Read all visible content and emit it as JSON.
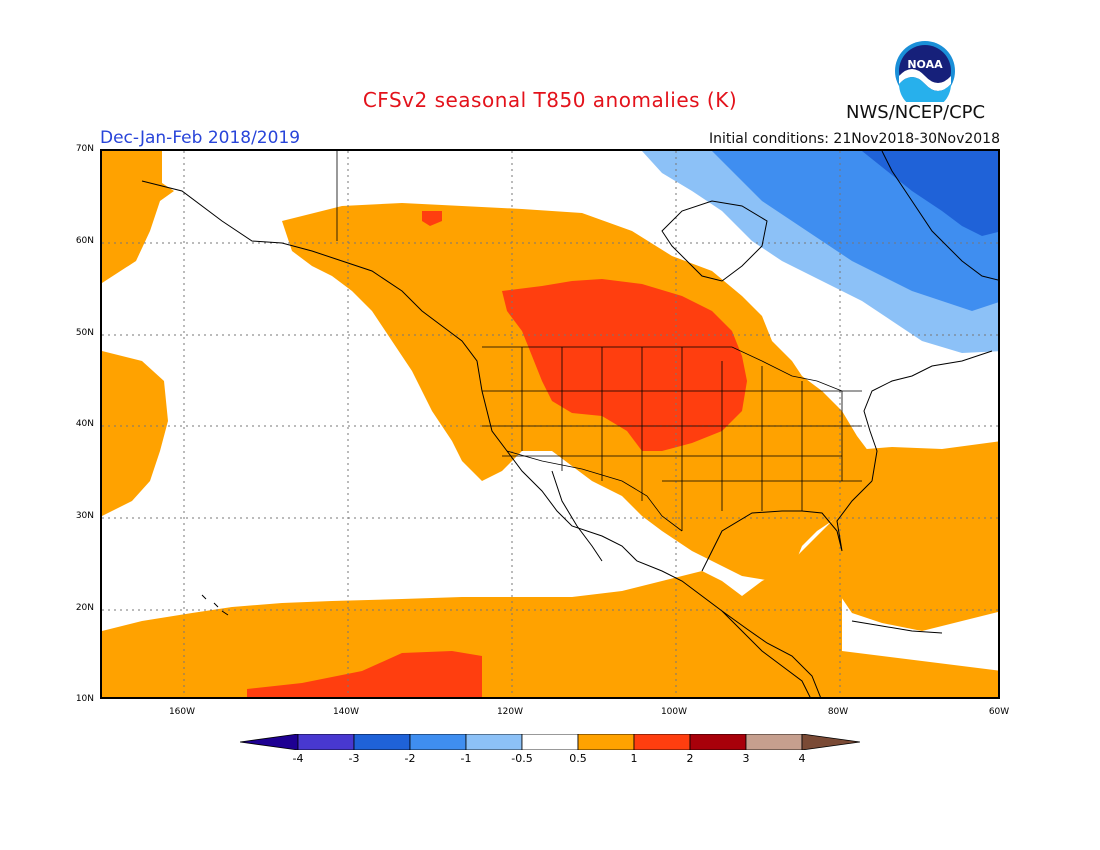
{
  "title": "CFSv2 seasonal T850 anomalies (K)",
  "agency": "NWS/NCEP/CPC",
  "logo_text": "NOAA",
  "season": "Dec-Jan-Feb 2018/2019",
  "initial_conditions": "Initial conditions: 21Nov2018-30Nov2018",
  "lat_labels": [
    "70N",
    "60N",
    "50N",
    "40N",
    "30N",
    "20N",
    "10N"
  ],
  "lon_labels": [
    "160W",
    "140W",
    "120W",
    "100W",
    "80W",
    "60W"
  ],
  "colorbar": {
    "labels": [
      "-4",
      "-3",
      "-2",
      "-1",
      "-0.5",
      "0.5",
      "1",
      "2",
      "3",
      "4"
    ],
    "colors": [
      "#1e0092",
      "#4838d0",
      "#1f62d8",
      "#3f8ef0",
      "#8cc1f7",
      "#ffffff",
      "#ffa200",
      "#ff3e0f",
      "#a8000a",
      "#c69f8e",
      "#7a4a35"
    ]
  },
  "legend_colors": {
    "warm_light": "#ffa200",
    "warm_strong": "#ff3e0f",
    "cool_light": "#8cc1f7",
    "cool_mid": "#3f8ef0",
    "cool_dark": "#1f62d8"
  }
}
